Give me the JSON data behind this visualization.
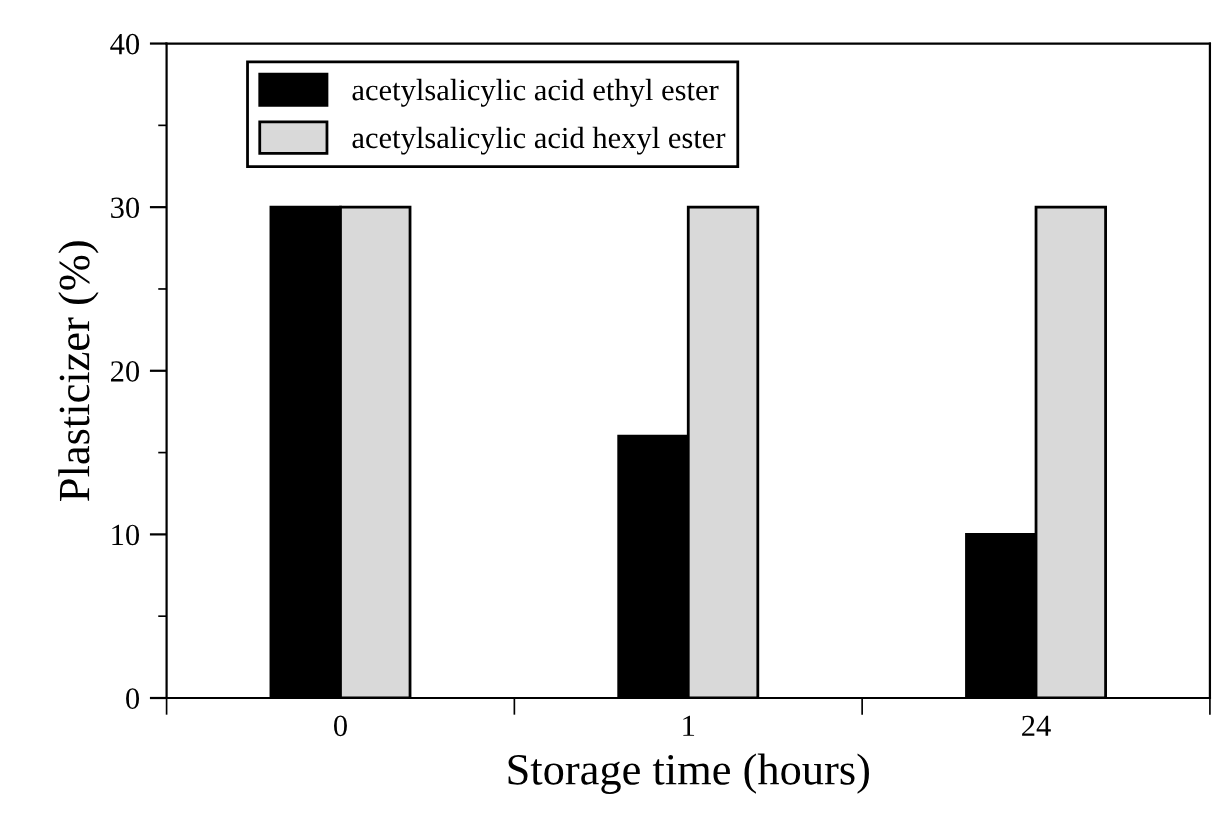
{
  "chart_data": {
    "type": "bar",
    "xlabel": "Storage time (hours)",
    "ylabel": "Plasticizer (%)",
    "categories": [
      "0",
      "1",
      "24"
    ],
    "series": [
      {
        "name": "acetylsalicylic acid ethyl ester",
        "color": "#000000",
        "values": [
          30,
          16,
          10
        ]
      },
      {
        "name": "acetylsalicylic acid hexyl ester",
        "color": "#d9d9d9",
        "values": [
          30,
          30,
          30
        ]
      }
    ],
    "ylim": [
      0,
      40
    ],
    "yticks": [
      0,
      10,
      20,
      30,
      40
    ],
    "grid": false,
    "legend": "top left"
  }
}
